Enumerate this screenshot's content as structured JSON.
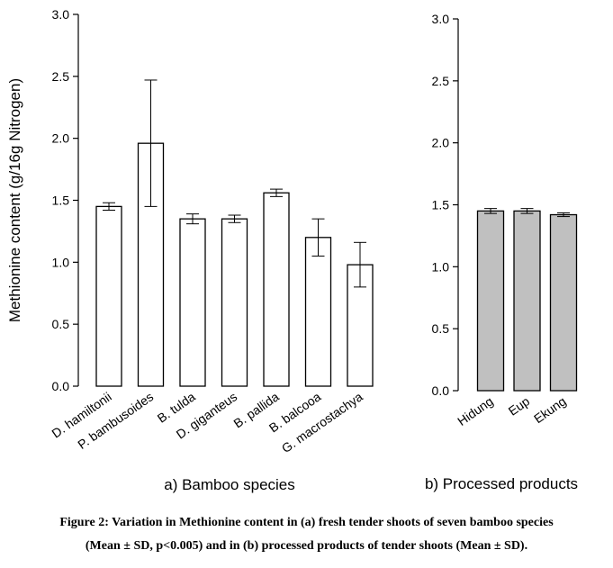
{
  "chart_data": [
    {
      "type": "bar",
      "panel_title": "a) Bamboo species",
      "ylabel": "Methionine content (g/16g Nitrogen)",
      "ylim": [
        0,
        3.0
      ],
      "yticks": [
        "0.0",
        "0.5",
        "1.0",
        "1.5",
        "2.0",
        "2.5",
        "3.0"
      ],
      "categories": [
        "D. hamiltonii",
        "P. bambusoides",
        "B. tulda",
        "D. giganteus",
        "B. pallida",
        "B. balcooa",
        "G. macrostachya"
      ],
      "values": [
        1.45,
        1.96,
        1.35,
        1.35,
        1.56,
        1.2,
        0.98
      ],
      "errors": [
        0.03,
        0.51,
        0.04,
        0.03,
        0.03,
        0.15,
        0.18
      ],
      "bar_color": "#ffffff"
    },
    {
      "type": "bar",
      "panel_title": "b) Processed products",
      "ylim": [
        0,
        3.0
      ],
      "yticks": [
        "0.0",
        "0.5",
        "1.0",
        "1.5",
        "2.0",
        "2.5",
        "3.0"
      ],
      "categories": [
        "Hidung",
        "Eup",
        "Ekung"
      ],
      "values": [
        1.45,
        1.45,
        1.42
      ],
      "errors": [
        0.02,
        0.02,
        0.015
      ],
      "bar_color": "#c0c0c0"
    }
  ],
  "caption": {
    "line1": "Figure 2: Variation in Methionine content in (a) fresh tender shoots of seven bamboo species",
    "line2": "(Mean ± SD, p<0.005) and in (b) processed products of tender shoots (Mean ± SD)."
  }
}
